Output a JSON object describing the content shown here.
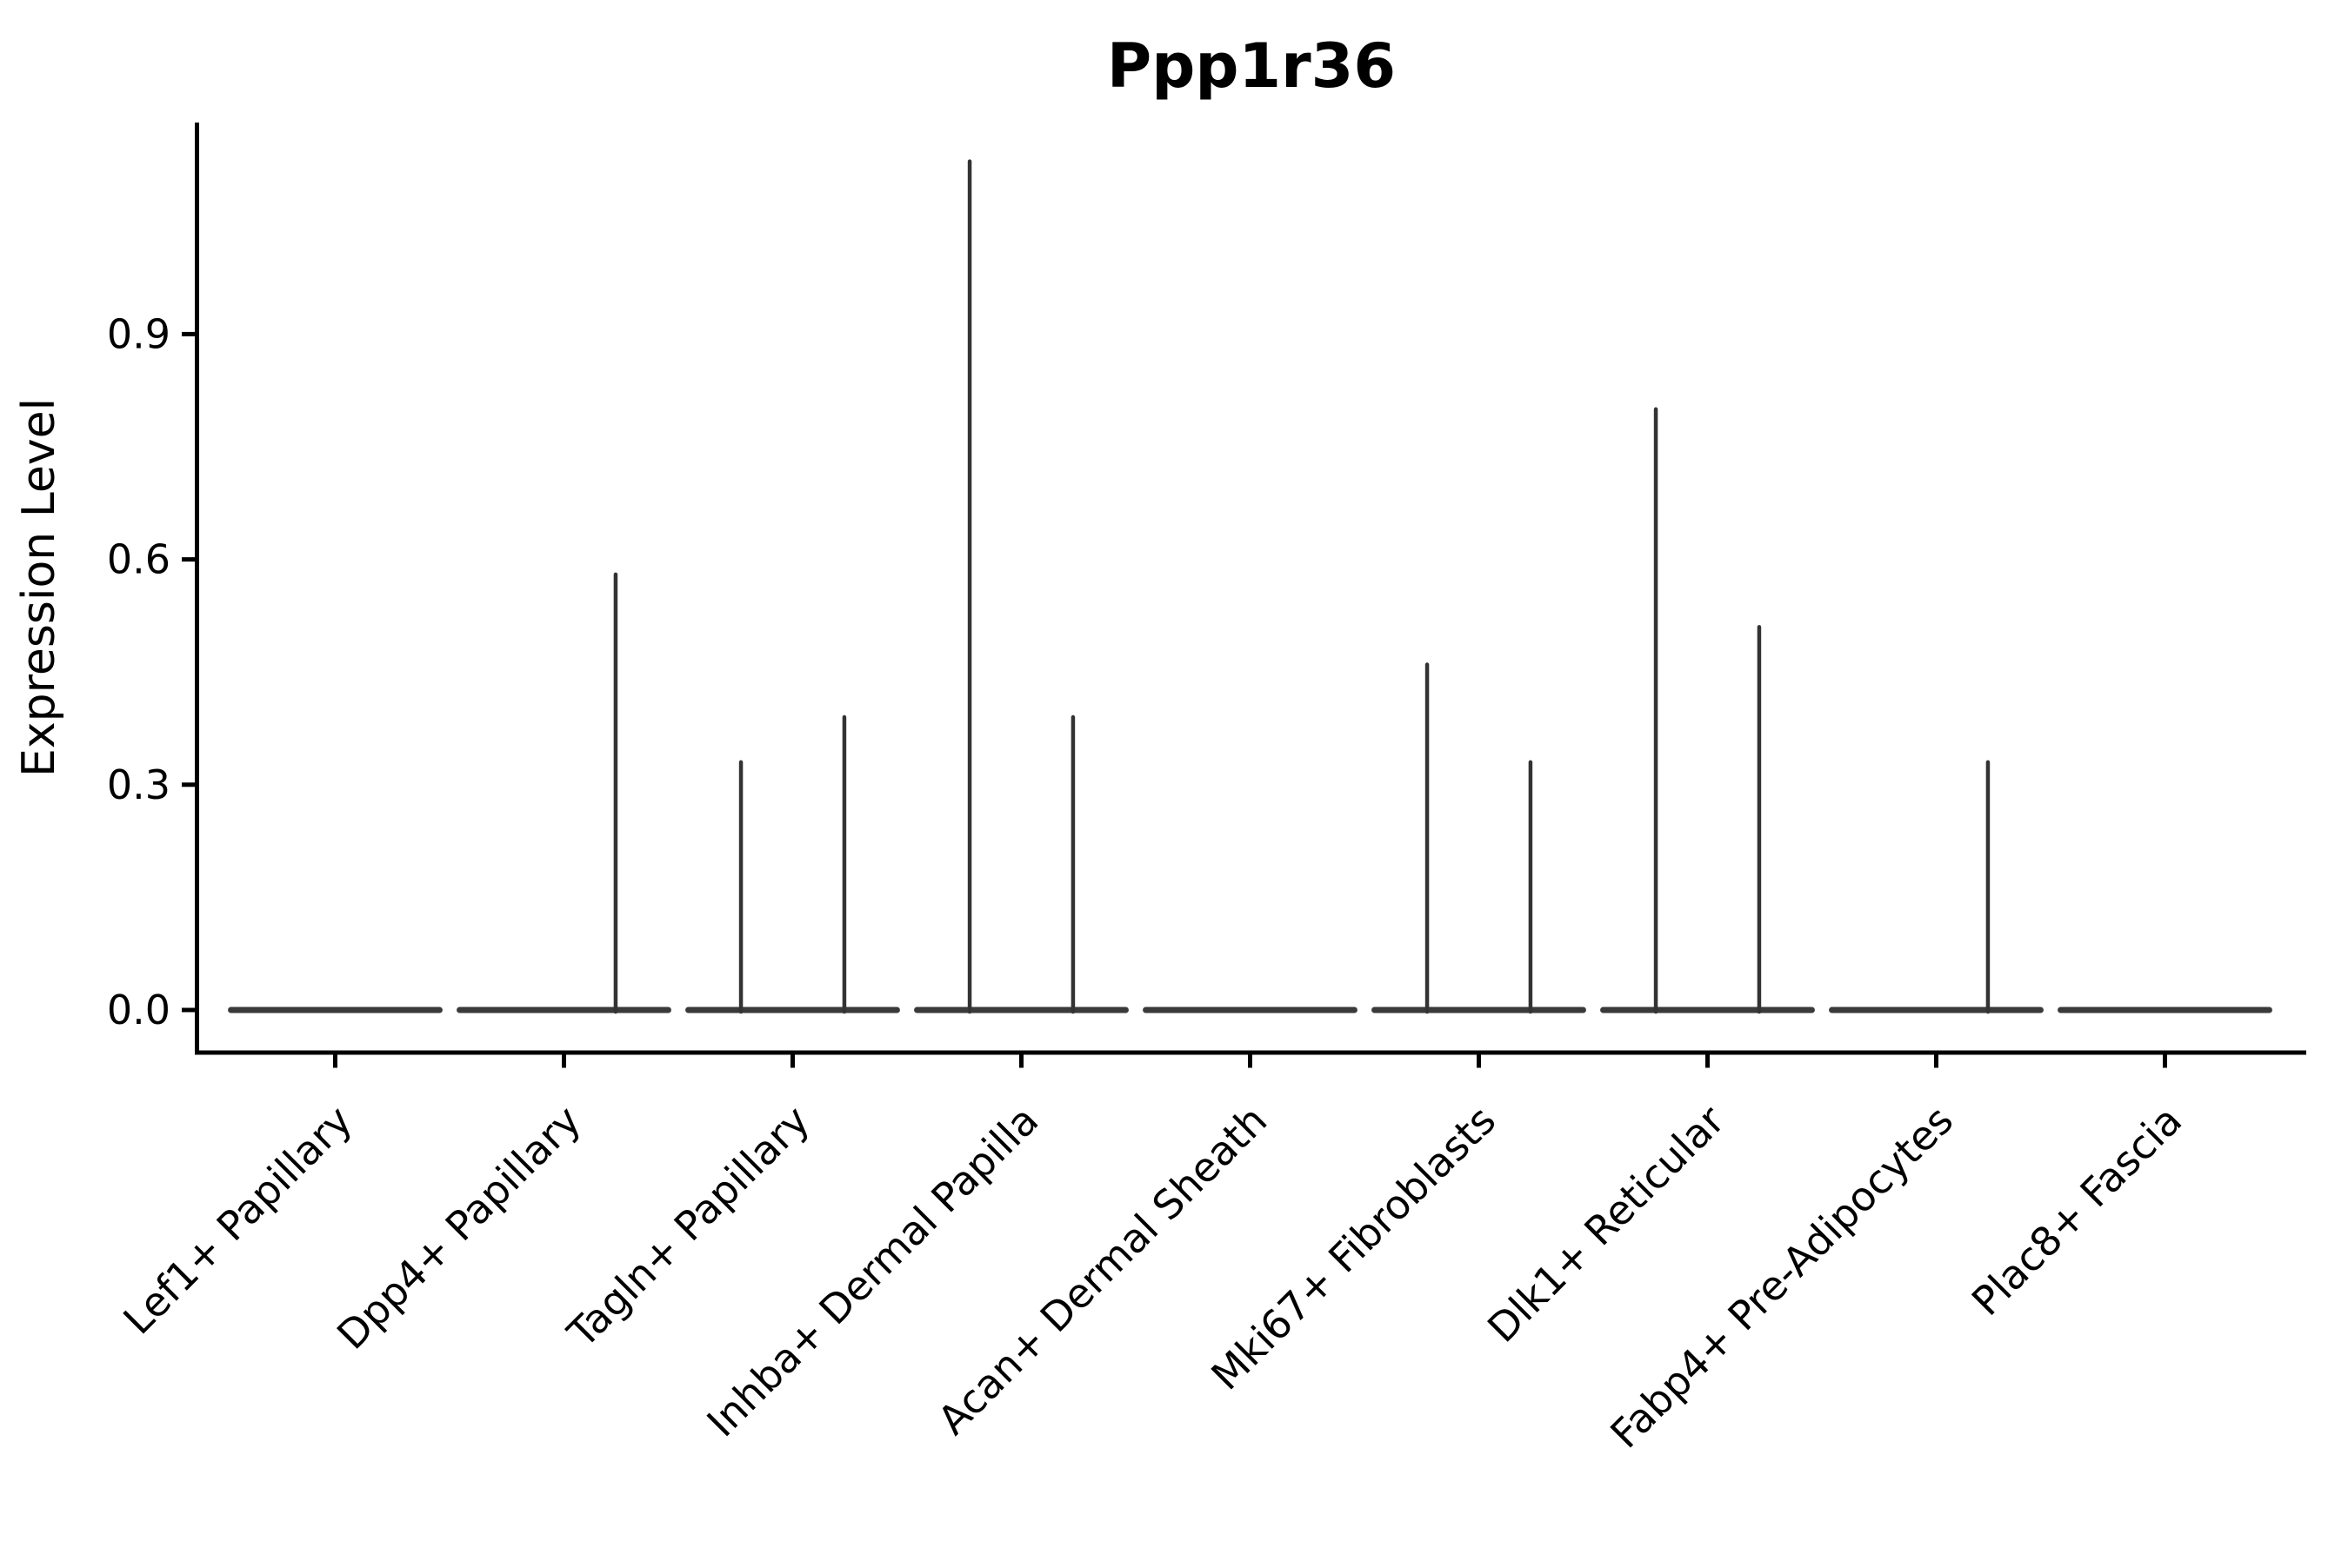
{
  "title": "Ppp1r36",
  "axes": {
    "ylabel": "Expression Level",
    "ytick_labels": [
      "0.0",
      "0.3",
      "0.6",
      "0.9"
    ],
    "xtick_label_rotation_deg": 45
  },
  "colors": {
    "background": "#ffffff",
    "spine": "#000000",
    "tick": "#000000",
    "text": "#000000",
    "violin_line": "#3a3a3a",
    "violin_spike": "#333333"
  },
  "chart_data": {
    "type": "violin",
    "title": "Ppp1r36",
    "xlabel": "",
    "ylabel": "Expression Level",
    "yticks": [
      0.0,
      0.3,
      0.6,
      0.9
    ],
    "ylim": [
      -0.057,
      1.182
    ],
    "grid": false,
    "legend": "none",
    "categories": [
      "Lef1+ Papillary",
      "Dpp4+ Papillary",
      "Tagln+ Papillary",
      "Inhba+ Dermal Papilla",
      "Acan+ Dermal Sheath",
      "Mki67+ Fibroblasts",
      "Dlk1+ Reticular",
      "Fabp4+ Pre-Adipocytes",
      "Plac8+ Fascia"
    ],
    "description": "Each category shows two side-by-side collapsed violins: a flat density line at expression 0 plus a hairline spike up to the sub-violin's maximum expression value (0 = no spike).",
    "groups_per_category": 2,
    "group_offset_fraction": 0.226,
    "flat_halfwidth_fraction": 0.456,
    "violins": [
      {
        "category": "Lef1+ Papillary",
        "group_max": [
          0,
          0
        ]
      },
      {
        "category": "Dpp4+ Papillary",
        "group_max": [
          0,
          0.58
        ]
      },
      {
        "category": "Tagln+ Papillary",
        "group_max": [
          0.33,
          0.39
        ]
      },
      {
        "category": "Inhba+ Dermal Papilla",
        "group_max": [
          1.13,
          0.39
        ]
      },
      {
        "category": "Acan+ Dermal Sheath",
        "group_max": [
          0,
          0
        ]
      },
      {
        "category": "Mki67+ Fibroblasts",
        "group_max": [
          0.46,
          0.33
        ]
      },
      {
        "category": "Dlk1+ Reticular",
        "group_max": [
          0.8,
          0.51
        ]
      },
      {
        "category": "Fabp4+ Pre-Adipocytes",
        "group_max": [
          0,
          0.33
        ]
      },
      {
        "category": "Plac8+ Fascia",
        "group_max": [
          0,
          0
        ]
      }
    ]
  }
}
